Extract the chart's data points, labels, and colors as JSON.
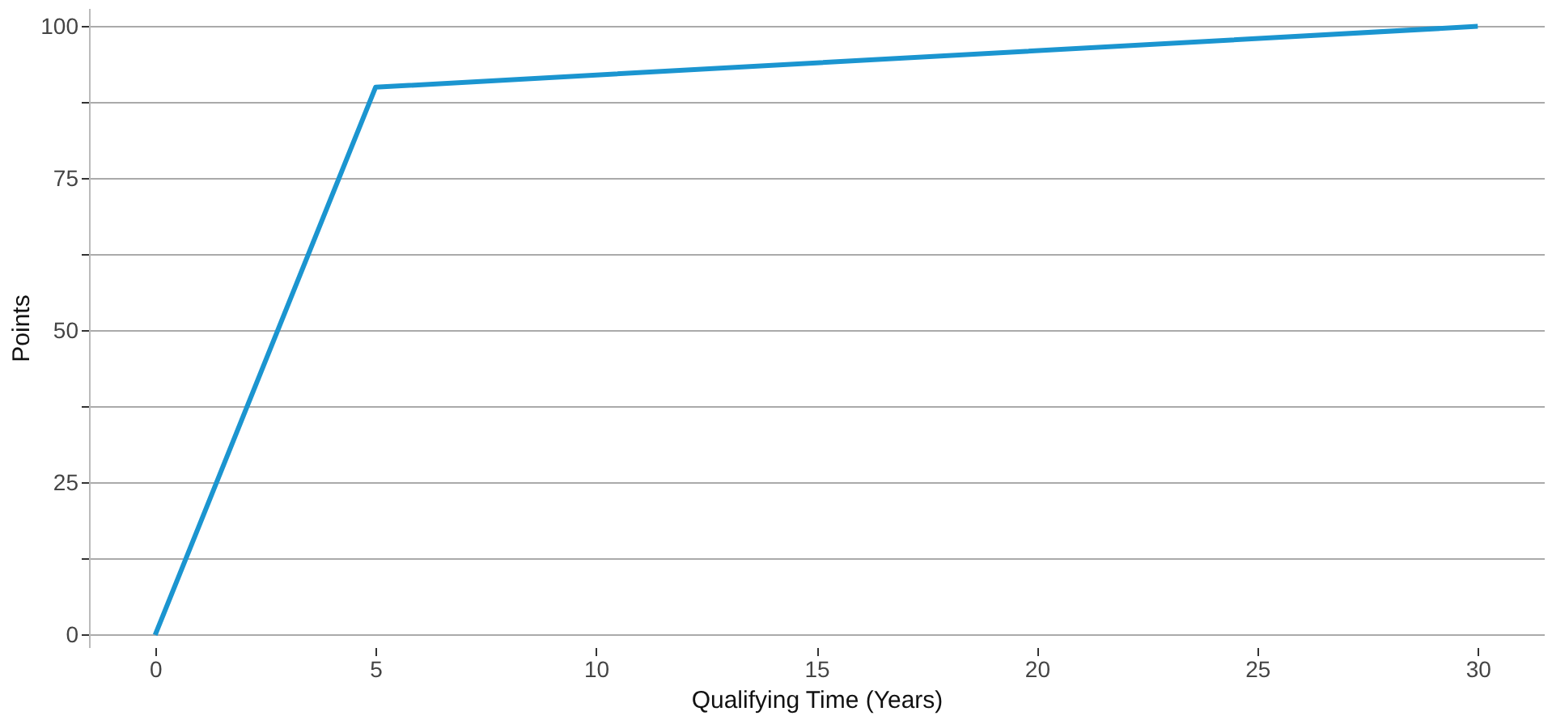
{
  "chart_data": {
    "type": "line",
    "xlabel": "Qualifying Time (Years)",
    "ylabel": "Points",
    "series": [
      {
        "color": "#1b95d0",
        "x": [
          0,
          5,
          30
        ],
        "values": [
          0,
          90,
          100
        ]
      }
    ],
    "xlim": [
      -1.5,
      31.5
    ],
    "xticks": [
      0,
      5,
      10,
      15,
      20,
      25,
      30
    ],
    "ylim": [
      -2,
      103
    ],
    "yticks": [
      0,
      {
        "value": 12.5,
        "label": null
      },
      25,
      {
        "value": 37.5,
        "label": null
      },
      50,
      {
        "value": 62.5,
        "label": null
      },
      75,
      {
        "value": 87.5,
        "label": null
      },
      100
    ],
    "grid": "y",
    "marker": "none",
    "line_style": "solid"
  }
}
